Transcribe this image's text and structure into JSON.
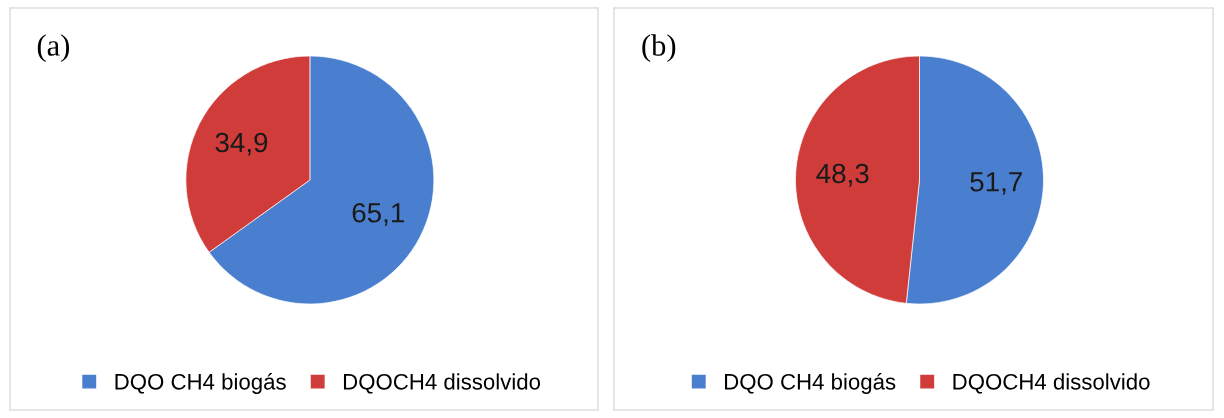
{
  "chart_data": [
    {
      "type": "pie",
      "title": "(a)",
      "categories": [
        "DQO CH4 biogás",
        "DQOCH4 dissolvido"
      ],
      "values": [
        65.1,
        34.9
      ],
      "value_labels": [
        "65,1",
        "34,9"
      ],
      "colors": [
        "#4a7fd0",
        "#d03c3a"
      ],
      "legend": "bottom"
    },
    {
      "type": "pie",
      "title": "(b)",
      "categories": [
        "DQO CH4 biogás",
        "DQOCH4 dissolvido"
      ],
      "values": [
        51.7,
        48.3
      ],
      "value_labels": [
        "51,7",
        "48,3"
      ],
      "colors": [
        "#4a7fd0",
        "#d03c3a"
      ],
      "legend": "bottom"
    }
  ]
}
